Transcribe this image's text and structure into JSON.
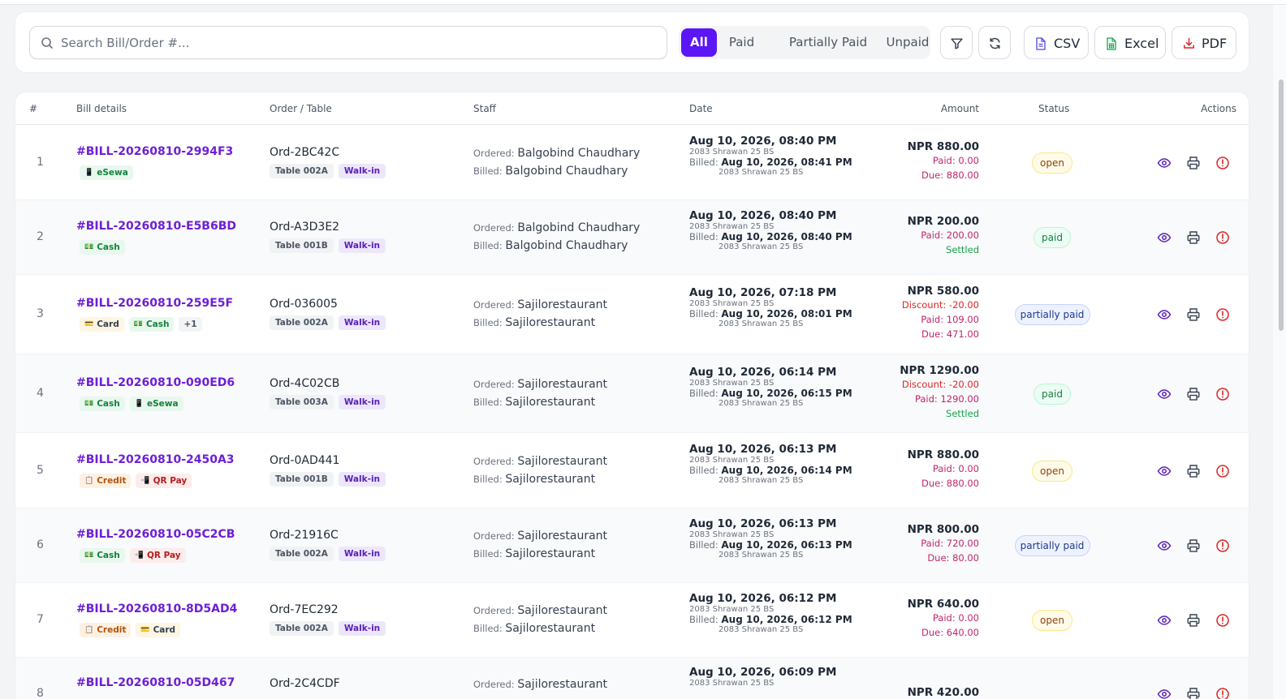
{
  "search": {
    "placeholder": "Search Bill/Order #..."
  },
  "filters": [
    {
      "label": "All",
      "active": true
    },
    {
      "label": "Paid",
      "active": false
    },
    {
      "label": "Partially Paid",
      "active": false
    },
    {
      "label": "Unpaid",
      "active": false
    }
  ],
  "toolbar": {
    "filter_icon": "filter-icon",
    "refresh_icon": "refresh-icon",
    "csv_label": "CSV",
    "excel_label": "Excel",
    "pdf_label": "PDF"
  },
  "colors": {
    "accent": "#5b16f5",
    "bill_link": "#6d1fd6",
    "due": "#c0266d",
    "settled": "#16a34a"
  },
  "table": {
    "headers": {
      "index": "#",
      "bill": "Bill details",
      "order": "Order / Table",
      "staff": "Staff",
      "date": "Date",
      "amount": "Amount",
      "status": "Status",
      "actions": "Actions"
    },
    "ordered_label": "Ordered:",
    "billed_label": "Billed:",
    "rows": [
      {
        "index": "1",
        "bill": "#BILL-20260810-2994F3",
        "payments": [
          {
            "label": "eSewa",
            "kind": "esewa",
            "icon": "📱"
          }
        ],
        "order": "Ord-2BC42C",
        "table": "Table 002A",
        "type": "Walk-in",
        "ordered_by": "Balgobind Chaudhary",
        "billed_by": "Balgobind Chaudhary",
        "date": "Aug 10, 2026, 08:40 PM",
        "date_bs": "2083 Shrawan 25 BS",
        "billed_date": "Aug 10, 2026, 08:41 PM",
        "billed_bs": "2083 Shrawan 25 BS",
        "total": "NPR 880.00",
        "lines": [
          {
            "text": "Paid: 0.00",
            "kind": "paid"
          },
          {
            "text": "Due: 880.00",
            "kind": "due"
          }
        ],
        "status": "open",
        "status_kind": "open"
      },
      {
        "index": "2",
        "bill": "#BILL-20260810-E5B6BD",
        "payments": [
          {
            "label": "Cash",
            "kind": "cash",
            "icon": "💵"
          }
        ],
        "order": "Ord-A3D3E2",
        "table": "Table 001B",
        "type": "Walk-in",
        "ordered_by": "Balgobind Chaudhary",
        "billed_by": "Balgobind Chaudhary",
        "date": "Aug 10, 2026, 08:40 PM",
        "date_bs": "2083 Shrawan 25 BS",
        "billed_date": "Aug 10, 2026, 08:40 PM",
        "billed_bs": "2083 Shrawan 25 BS",
        "total": "NPR 200.00",
        "lines": [
          {
            "text": "Paid: 200.00",
            "kind": "paid"
          },
          {
            "text": "Settled",
            "kind": "settled"
          }
        ],
        "status": "paid",
        "status_kind": "paid"
      },
      {
        "index": "3",
        "bill": "#BILL-20260810-259E5F",
        "payments": [
          {
            "label": "Card",
            "kind": "card",
            "icon": "💳"
          },
          {
            "label": "Cash",
            "kind": "cash",
            "icon": "💵"
          },
          {
            "label": "+1",
            "kind": "more",
            "icon": ""
          }
        ],
        "order": "Ord-036005",
        "table": "Table 002A",
        "type": "Walk-in",
        "ordered_by": "Sajilorestaurant",
        "billed_by": "Sajilorestaurant",
        "date": "Aug 10, 2026, 07:18 PM",
        "date_bs": "2083 Shrawan 25 BS",
        "billed_date": "Aug 10, 2026, 08:01 PM",
        "billed_bs": "2083 Shrawan 25 BS",
        "total": "NPR 580.00",
        "lines": [
          {
            "text": "Discount: -20.00",
            "kind": "disc"
          },
          {
            "text": "Paid: 109.00",
            "kind": "paid"
          },
          {
            "text": "Due: 471.00",
            "kind": "due"
          }
        ],
        "status": "partially paid",
        "status_kind": "partial"
      },
      {
        "index": "4",
        "bill": "#BILL-20260810-090ED6",
        "payments": [
          {
            "label": "Cash",
            "kind": "cash",
            "icon": "💵"
          },
          {
            "label": "eSewa",
            "kind": "esewa",
            "icon": "📱"
          }
        ],
        "order": "Ord-4C02CB",
        "table": "Table 003A",
        "type": "Walk-in",
        "ordered_by": "Sajilorestaurant",
        "billed_by": "Sajilorestaurant",
        "date": "Aug 10, 2026, 06:14 PM",
        "date_bs": "2083 Shrawan 25 BS",
        "billed_date": "Aug 10, 2026, 06:15 PM",
        "billed_bs": "2083 Shrawan 25 BS",
        "total": "NPR 1290.00",
        "lines": [
          {
            "text": "Discount: -20.00",
            "kind": "disc"
          },
          {
            "text": "Paid: 1290.00",
            "kind": "paid"
          },
          {
            "text": "Settled",
            "kind": "settled"
          }
        ],
        "status": "paid",
        "status_kind": "paid"
      },
      {
        "index": "5",
        "bill": "#BILL-20260810-2450A3",
        "payments": [
          {
            "label": "Credit",
            "kind": "credit",
            "icon": "📋"
          },
          {
            "label": "QR Pay",
            "kind": "qr",
            "icon": "📲"
          }
        ],
        "order": "Ord-0AD441",
        "table": "Table 001B",
        "type": "Walk-in",
        "ordered_by": "Sajilorestaurant",
        "billed_by": "Sajilorestaurant",
        "date": "Aug 10, 2026, 06:13 PM",
        "date_bs": "2083 Shrawan 25 BS",
        "billed_date": "Aug 10, 2026, 06:14 PM",
        "billed_bs": "2083 Shrawan 25 BS",
        "total": "NPR 880.00",
        "lines": [
          {
            "text": "Paid: 0.00",
            "kind": "paid"
          },
          {
            "text": "Due: 880.00",
            "kind": "due"
          }
        ],
        "status": "open",
        "status_kind": "open"
      },
      {
        "index": "6",
        "bill": "#BILL-20260810-05C2CB",
        "payments": [
          {
            "label": "Cash",
            "kind": "cash",
            "icon": "💵"
          },
          {
            "label": "QR Pay",
            "kind": "qr",
            "icon": "📲"
          }
        ],
        "order": "Ord-21916C",
        "table": "Table 002A",
        "type": "Walk-in",
        "ordered_by": "Sajilorestaurant",
        "billed_by": "Sajilorestaurant",
        "date": "Aug 10, 2026, 06:13 PM",
        "date_bs": "2083 Shrawan 25 BS",
        "billed_date": "Aug 10, 2026, 06:13 PM",
        "billed_bs": "2083 Shrawan 25 BS",
        "total": "NPR 800.00",
        "lines": [
          {
            "text": "Paid: 720.00",
            "kind": "paid"
          },
          {
            "text": "Due: 80.00",
            "kind": "due"
          }
        ],
        "status": "partially paid",
        "status_kind": "partial"
      },
      {
        "index": "7",
        "bill": "#BILL-20260810-8D5AD4",
        "payments": [
          {
            "label": "Credit",
            "kind": "credit",
            "icon": "📋"
          },
          {
            "label": "Card",
            "kind": "card",
            "icon": "💳"
          }
        ],
        "order": "Ord-7EC292",
        "table": "Table 002A",
        "type": "Walk-in",
        "ordered_by": "Sajilorestaurant",
        "billed_by": "Sajilorestaurant",
        "date": "Aug 10, 2026, 06:12 PM",
        "date_bs": "2083 Shrawan 25 BS",
        "billed_date": "Aug 10, 2026, 06:12 PM",
        "billed_bs": "2083 Shrawan 25 BS",
        "total": "NPR 640.00",
        "lines": [
          {
            "text": "Paid: 0.00",
            "kind": "paid"
          },
          {
            "text": "Due: 640.00",
            "kind": "due"
          }
        ],
        "status": "open",
        "status_kind": "open"
      },
      {
        "index": "8",
        "bill": "#BILL-20260810-05D467",
        "payments": [],
        "order": "Ord-2C4CDF",
        "table": "",
        "type": "",
        "ordered_by": "Sajilorestaurant",
        "billed_by": "",
        "date": "Aug 10, 2026, 06:09 PM",
        "date_bs": "2083 Shrawan 25 BS",
        "billed_date": "",
        "billed_bs": "",
        "total": "NPR 420.00",
        "lines": [],
        "status": "",
        "status_kind": "open"
      }
    ]
  }
}
